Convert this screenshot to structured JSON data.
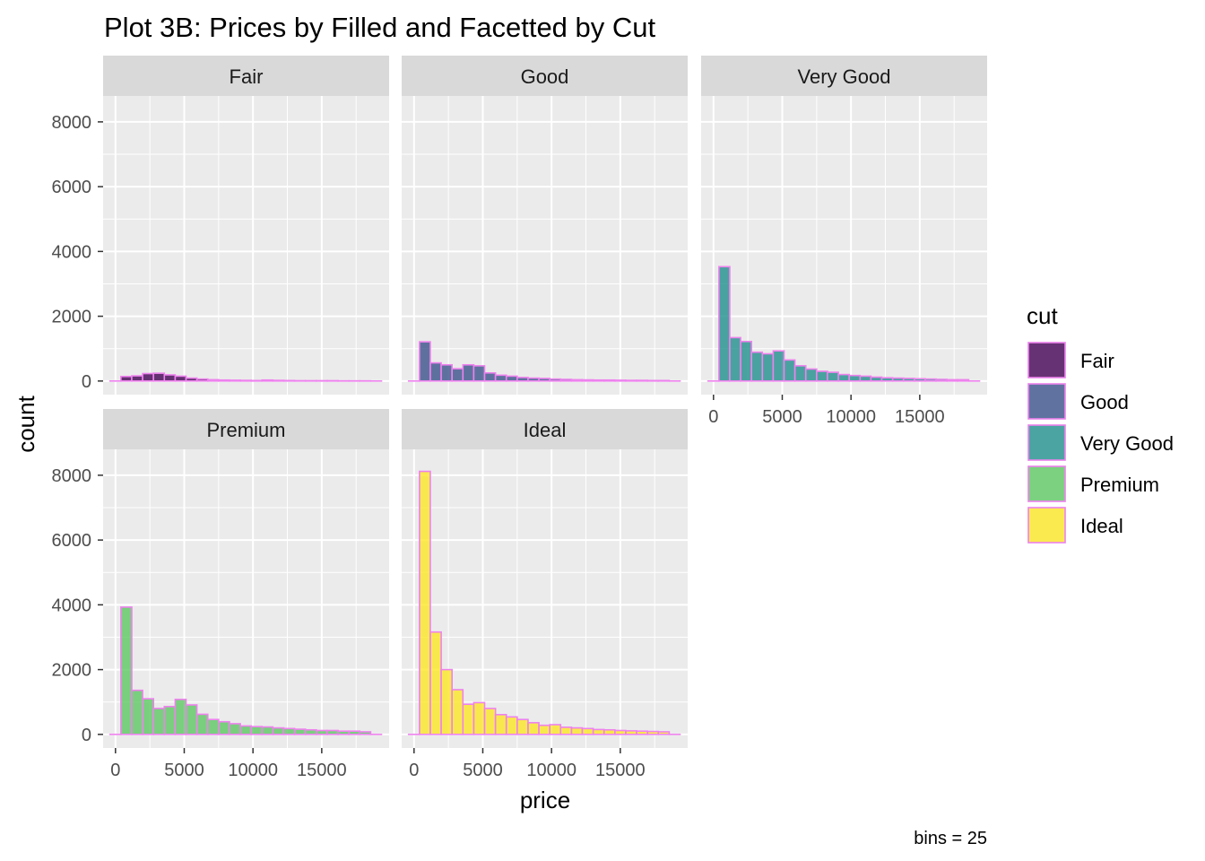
{
  "chart_data": {
    "type": "bar",
    "subtype": "faceted-histogram",
    "title": "Plot 3B: Prices by Filled and Facetted by Cut",
    "xlabel": "price",
    "ylabel": "count",
    "caption": "bins = 25",
    "bins": 25,
    "bin_centers": [
      0,
      789.7,
      1579.3,
      2369,
      3158.6,
      3948.3,
      4737.9,
      5527.6,
      6317.2,
      7106.9,
      7896.5,
      8686.2,
      9475.8,
      10265.5,
      11055.1,
      11844.8,
      12634.4,
      13424.1,
      14213.7,
      15003.4,
      15793,
      16582.7,
      17372.3,
      18162,
      18951.6
    ],
    "xlim": [
      -900,
      19900
    ],
    "ylim": [
      -420,
      8800
    ],
    "x_ticks": [
      0,
      5000,
      10000,
      15000
    ],
    "x_tick_labels": [
      "0",
      "5000",
      "10000",
      "15000"
    ],
    "y_ticks": [
      0,
      2000,
      4000,
      6000,
      8000
    ],
    "y_tick_labels": [
      "0",
      "2000",
      "4000",
      "6000",
      "8000"
    ],
    "bar_outline_color": "#ee82ee",
    "panel_background": "#ebebeb",
    "strip_background": "#d9d9d9",
    "grid": true,
    "legend_title": "cut",
    "legend_position": "right",
    "series": [
      {
        "name": "Fair",
        "color": "#440154",
        "values": [
          0,
          140,
          160,
          230,
          240,
          190,
          150,
          90,
          60,
          40,
          30,
          25,
          20,
          15,
          30,
          20,
          15,
          10,
          10,
          10,
          10,
          5,
          5,
          5,
          0
        ]
      },
      {
        "name": "Good",
        "color": "#3b528b",
        "values": [
          0,
          1210,
          560,
          500,
          380,
          500,
          470,
          250,
          180,
          150,
          110,
          90,
          80,
          60,
          50,
          40,
          35,
          30,
          30,
          25,
          20,
          20,
          15,
          15,
          0
        ]
      },
      {
        "name": "Very Good",
        "color": "#21908d",
        "values": [
          0,
          3530,
          1340,
          1220,
          890,
          840,
          930,
          650,
          470,
          370,
          300,
          270,
          200,
          170,
          150,
          120,
          100,
          90,
          80,
          70,
          60,
          50,
          40,
          40,
          0
        ]
      },
      {
        "name": "Premium",
        "color": "#5dc863",
        "values": [
          0,
          3930,
          1360,
          1100,
          800,
          860,
          1080,
          910,
          620,
          460,
          390,
          330,
          260,
          240,
          230,
          200,
          180,
          160,
          140,
          120,
          120,
          100,
          100,
          80,
          0
        ]
      },
      {
        "name": "Ideal",
        "color": "#fde725",
        "values": [
          0,
          8120,
          3160,
          2000,
          1380,
          930,
          980,
          800,
          610,
          540,
          460,
          360,
          280,
          300,
          220,
          200,
          180,
          150,
          140,
          120,
          110,
          100,
          90,
          80,
          0
        ]
      }
    ]
  }
}
